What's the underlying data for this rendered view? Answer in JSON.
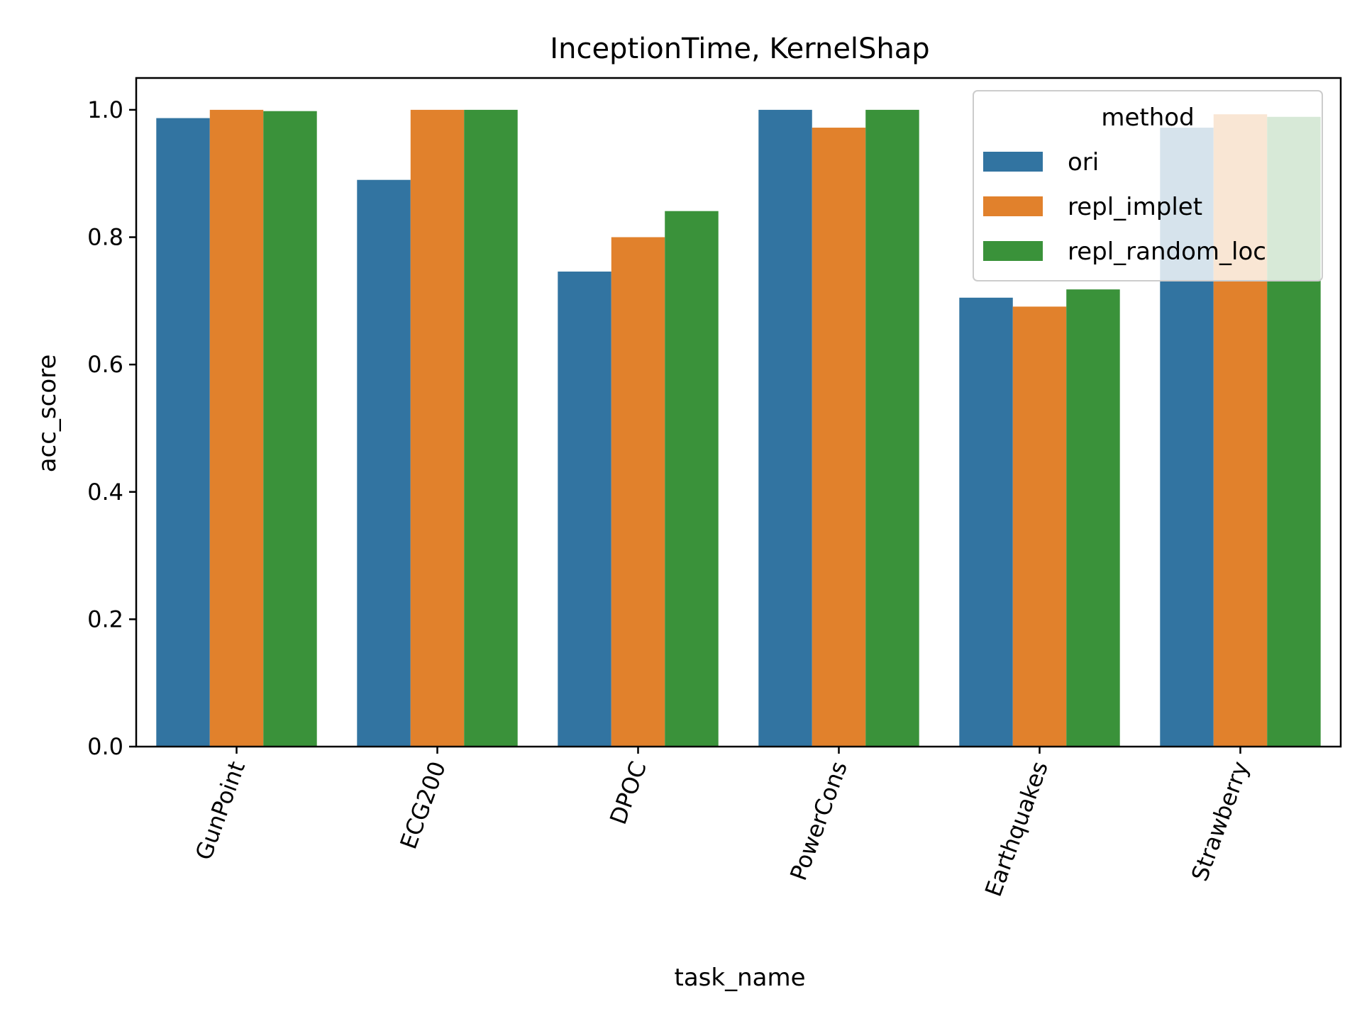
{
  "chart_data": {
    "type": "bar",
    "title": "InceptionTime, KernelShap",
    "xlabel": "task_name",
    "ylabel": "acc_score",
    "categories": [
      "GunPoint",
      "ECG200",
      "DPOC",
      "PowerCons",
      "Earthquakes",
      "Strawberry"
    ],
    "series": [
      {
        "name": "ori",
        "color": "#3274a1",
        "values": [
          0.987,
          0.89,
          0.746,
          1.0,
          0.705,
          0.972
        ]
      },
      {
        "name": "repl_implet",
        "color": "#e1812c",
        "values": [
          1.0,
          1.0,
          0.8,
          0.972,
          0.691,
          0.993
        ]
      },
      {
        "name": "repl_random_loc",
        "color": "#3a923a",
        "values": [
          0.998,
          1.0,
          0.841,
          1.0,
          0.718,
          0.989
        ]
      }
    ],
    "ylim": [
      0,
      1.05
    ],
    "yticks": [
      0.0,
      0.2,
      0.4,
      0.6,
      0.8,
      1.0
    ],
    "ytick_labels": [
      "0.0",
      "0.2",
      "0.4",
      "0.6",
      "0.8",
      "1.0"
    ],
    "grid": false,
    "legend": {
      "title": "method",
      "placement": "top-right"
    }
  }
}
